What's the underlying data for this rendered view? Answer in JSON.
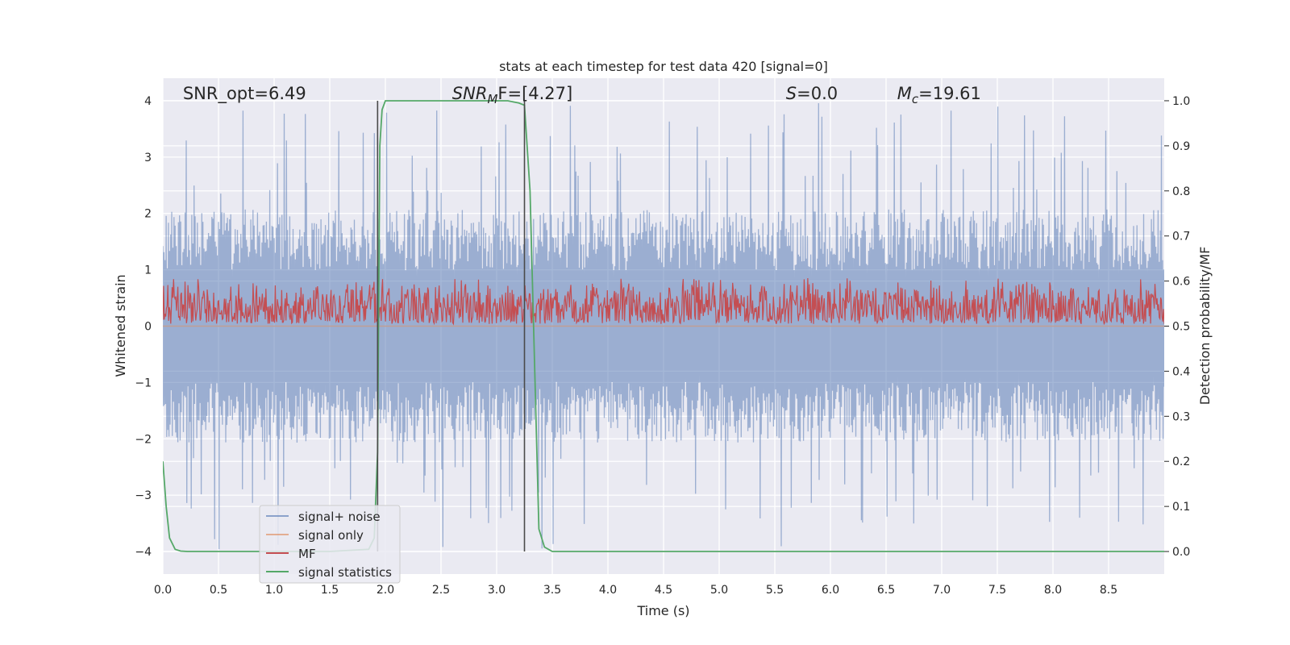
{
  "chart_data": {
    "type": "line",
    "title": "stats at each timestep for test data 420 [signal=0]",
    "xlabel": "Time (s)",
    "ylabel": "Whitened strain",
    "y2label": "Detection probability/MF",
    "xlim": [
      0.0,
      9.0
    ],
    "ylim": [
      -4.4,
      4.4
    ],
    "y2lim": [
      -0.05,
      1.05
    ],
    "xticks": [
      0.0,
      0.5,
      1.0,
      1.5,
      2.0,
      2.5,
      3.0,
      3.5,
      4.0,
      4.5,
      5.0,
      5.5,
      6.0,
      6.5,
      7.0,
      7.5,
      8.0,
      8.5
    ],
    "xtick_labels": [
      "0.0",
      "0.5",
      "1.0",
      "1.5",
      "2.0",
      "2.5",
      "3.0",
      "3.5",
      "4.0",
      "4.5",
      "5.0",
      "5.5",
      "6.0",
      "6.5",
      "7.0",
      "7.5",
      "8.0",
      "8.5"
    ],
    "yticks": [
      4,
      3,
      2,
      1,
      0,
      -1,
      -2,
      -3,
      -4
    ],
    "ytick_labels": [
      "4",
      "3",
      "2",
      "1",
      "0",
      "−1",
      "−2",
      "−3",
      "−4"
    ],
    "y2ticks": [
      1.0,
      0.9,
      0.8,
      0.7,
      0.6,
      0.5,
      0.4,
      0.3,
      0.2,
      0.1,
      0.0
    ],
    "y2tick_labels": [
      "1.0",
      "0.9",
      "0.8",
      "0.7",
      "0.6",
      "0.5",
      "0.4",
      "0.3",
      "0.2",
      "0.1",
      "0.0"
    ],
    "annotations": [
      {
        "id": "snr-opt",
        "label": "SNR_opt=6.49",
        "x": 0.18,
        "y": 4.1
      },
      {
        "id": "snr-mf",
        "label": "SNR_MF=[4.27]",
        "prefix": "SNR",
        "sub": "M",
        "suffix": "F=[4.27]",
        "x": 2.6,
        "y": 4.1
      },
      {
        "id": "s-value",
        "label": "S=0.0",
        "prefix": "S",
        "sub": "",
        "suffix": "=0.0",
        "x": 5.6,
        "y": 4.1
      },
      {
        "id": "mc-value",
        "label": "M_c=19.61",
        "prefix": "M",
        "sub": "c",
        "suffix": "=19.61",
        "x": 6.6,
        "y": 4.1
      }
    ],
    "vlines": [
      {
        "x": 1.93,
        "ymin": -4.0,
        "ymax": 4.0
      },
      {
        "x": 3.25,
        "ymin": -4.0,
        "ymax": 4.0
      }
    ],
    "series": [
      {
        "name": "signal+ noise",
        "color": "#4c72b0",
        "axis": "left",
        "kind": "noise",
        "amplitude_typical": 1.8,
        "amplitude_peak": 4.0
      },
      {
        "name": "signal only",
        "color": "#dd8452",
        "axis": "left",
        "kind": "flat",
        "value": 0.0
      },
      {
        "name": "MF",
        "color": "#c44e52",
        "axis": "right",
        "kind": "mf",
        "center": 0.54,
        "spread": 0.07
      },
      {
        "name": "signal statistics",
        "color": "#55a868",
        "axis": "right",
        "x": [
          0.0,
          0.03,
          0.06,
          0.11,
          0.16,
          0.22,
          0.3,
          0.5,
          1.0,
          1.5,
          1.85,
          1.9,
          1.93,
          1.95,
          1.97,
          2.0,
          2.05,
          2.1,
          2.5,
          3.0,
          3.1,
          3.2,
          3.25,
          3.3,
          3.38,
          3.43,
          3.5,
          4.0,
          5.0,
          6.0,
          7.0,
          8.0,
          9.0
        ],
        "values": [
          0.2,
          0.1,
          0.03,
          0.005,
          0.001,
          0.0,
          0.0,
          0.0,
          0.0,
          0.0,
          0.005,
          0.03,
          0.22,
          0.9,
          0.98,
          1.0,
          1.0,
          1.0,
          1.0,
          1.0,
          1.0,
          0.995,
          0.99,
          0.8,
          0.05,
          0.01,
          0.0,
          0.0,
          0.0,
          0.0,
          0.0,
          0.0,
          0.0
        ]
      }
    ],
    "legend_position": "lower-left"
  }
}
